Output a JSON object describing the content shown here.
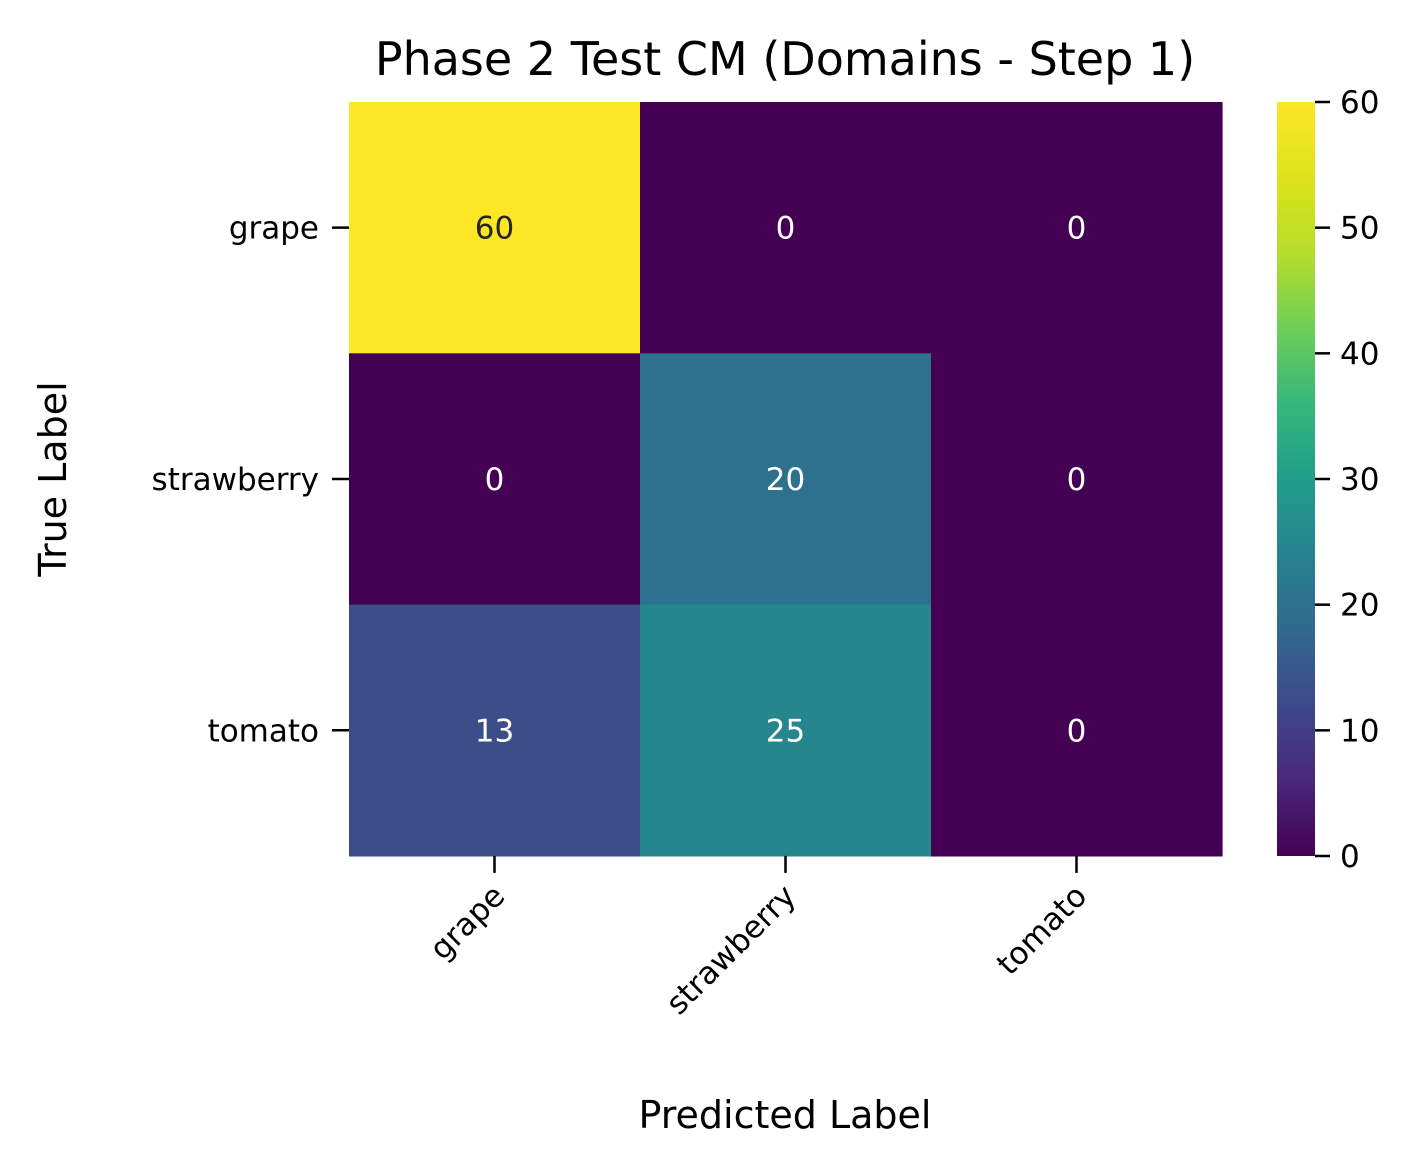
{
  "chart_data": {
    "type": "heatmap",
    "title": "Phase 2 Test CM (Domains - Step 1)",
    "xlabel": "Predicted Label",
    "ylabel": "True Label",
    "x_categories": [
      "grape",
      "strawberry",
      "tomato"
    ],
    "y_categories": [
      "grape",
      "strawberry",
      "tomato"
    ],
    "values": [
      [
        60,
        0,
        0
      ],
      [
        0,
        20,
        0
      ],
      [
        13,
        25,
        0
      ]
    ],
    "colormap": "viridis",
    "colorbar": {
      "vmin": 0,
      "vmax": 60,
      "ticks": [
        0,
        10,
        20,
        30,
        40,
        50,
        60
      ]
    },
    "annotation_colors": {
      "dark": "#262626",
      "light": "#ffffff"
    },
    "grid": false,
    "legend": "none"
  }
}
